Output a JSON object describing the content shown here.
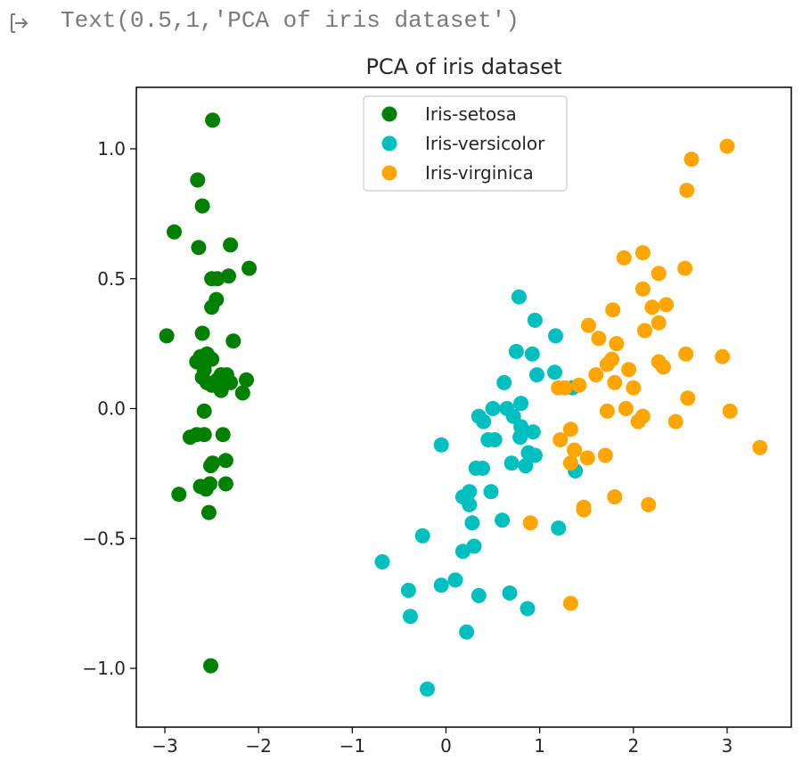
{
  "output": {
    "text": "Text(0.5,1,'PCA of iris dataset')",
    "icon": "output-arrow-icon"
  },
  "chart_data": {
    "type": "scatter",
    "title": "PCA of iris dataset",
    "xlabel": "",
    "ylabel": "",
    "xlim": [
      -3.3,
      3.7
    ],
    "ylim": [
      -1.22,
      1.23
    ],
    "xticks": [
      -3,
      -2,
      -1,
      0,
      1,
      2,
      3
    ],
    "yticks": [
      1.0,
      0.5,
      0.0,
      -0.5,
      -1.0
    ],
    "ytick_labels": [
      "1.0",
      "0.5",
      "0.0",
      "−0.5",
      "−1.0"
    ],
    "xtick_labels": [
      "−3",
      "−2",
      "−1",
      "0",
      "1",
      "2",
      "3"
    ],
    "grid": false,
    "legend": "top-center",
    "series": [
      {
        "name": "Iris-setosa",
        "color": "#008000",
        "points": [
          [
            -2.49,
            1.11
          ],
          [
            -2.65,
            0.88
          ],
          [
            -2.6,
            0.78
          ],
          [
            -2.9,
            0.68
          ],
          [
            -2.64,
            0.62
          ],
          [
            -2.3,
            0.63
          ],
          [
            -2.1,
            0.54
          ],
          [
            -2.5,
            0.5
          ],
          [
            -2.44,
            0.5
          ],
          [
            -2.32,
            0.51
          ],
          [
            -2.45,
            0.42
          ],
          [
            -2.5,
            0.39
          ],
          [
            -2.98,
            0.28
          ],
          [
            -2.6,
            0.29
          ],
          [
            -2.27,
            0.26
          ],
          [
            -2.62,
            0.2
          ],
          [
            -2.55,
            0.21
          ],
          [
            -2.5,
            0.19
          ],
          [
            -2.66,
            0.18
          ],
          [
            -2.58,
            0.15
          ],
          [
            -2.4,
            0.13
          ],
          [
            -2.34,
            0.13
          ],
          [
            -2.13,
            0.11
          ],
          [
            -2.44,
            0.11
          ],
          [
            -2.3,
            0.1
          ],
          [
            -2.55,
            0.1
          ],
          [
            -2.6,
            0.12
          ],
          [
            -2.4,
            0.07
          ],
          [
            -2.5,
            0.09
          ],
          [
            -2.17,
            0.06
          ],
          [
            -2.58,
            -0.01
          ],
          [
            -2.73,
            -0.11
          ],
          [
            -2.66,
            -0.1
          ],
          [
            -2.58,
            -0.1
          ],
          [
            -2.38,
            -0.1
          ],
          [
            -2.49,
            -0.21
          ],
          [
            -2.51,
            -0.22
          ],
          [
            -2.35,
            -0.2
          ],
          [
            -2.62,
            -0.3
          ],
          [
            -2.56,
            -0.31
          ],
          [
            -2.52,
            -0.29
          ],
          [
            -2.35,
            -0.29
          ],
          [
            -2.85,
            -0.33
          ],
          [
            -2.53,
            -0.4
          ],
          [
            -2.51,
            -0.99
          ]
        ]
      },
      {
        "name": "Iris-versicolor",
        "color": "#00bfbf",
        "points": [
          [
            0.78,
            0.43
          ],
          [
            0.95,
            0.34
          ],
          [
            1.17,
            0.28
          ],
          [
            0.75,
            0.22
          ],
          [
            0.92,
            0.21
          ],
          [
            0.62,
            0.1
          ],
          [
            1.16,
            0.14
          ],
          [
            0.97,
            0.13
          ],
          [
            1.35,
            0.08
          ],
          [
            0.5,
            0.0
          ],
          [
            0.65,
            0.0
          ],
          [
            0.72,
            -0.03
          ],
          [
            0.8,
            0.02
          ],
          [
            0.35,
            -0.03
          ],
          [
            0.4,
            -0.05
          ],
          [
            0.8,
            -0.07
          ],
          [
            0.79,
            -0.11
          ],
          [
            0.93,
            -0.09
          ],
          [
            0.45,
            -0.12
          ],
          [
            0.52,
            -0.12
          ],
          [
            -0.05,
            -0.14
          ],
          [
            0.88,
            -0.17
          ],
          [
            0.95,
            -0.18
          ],
          [
            0.7,
            -0.21
          ],
          [
            0.85,
            -0.22
          ],
          [
            1.38,
            -0.24
          ],
          [
            0.32,
            -0.23
          ],
          [
            0.39,
            -0.23
          ],
          [
            0.48,
            -0.32
          ],
          [
            0.25,
            -0.32
          ],
          [
            0.18,
            -0.34
          ],
          [
            0.25,
            -0.37
          ],
          [
            0.6,
            -0.43
          ],
          [
            0.28,
            -0.44
          ],
          [
            1.2,
            -0.46
          ],
          [
            -0.25,
            -0.49
          ],
          [
            0.3,
            -0.53
          ],
          [
            0.18,
            -0.55
          ],
          [
            -0.68,
            -0.59
          ],
          [
            0.1,
            -0.66
          ],
          [
            -0.05,
            -0.68
          ],
          [
            -0.4,
            -0.7
          ],
          [
            0.68,
            -0.71
          ],
          [
            0.35,
            -0.72
          ],
          [
            0.87,
            -0.77
          ],
          [
            -0.38,
            -0.8
          ],
          [
            0.22,
            -0.86
          ],
          [
            -0.2,
            -1.08
          ]
        ]
      },
      {
        "name": "Iris-virginica",
        "color": "#ffa500",
        "points": [
          [
            3.0,
            1.01
          ],
          [
            2.62,
            0.96
          ],
          [
            2.57,
            0.84
          ],
          [
            2.1,
            0.6
          ],
          [
            1.9,
            0.58
          ],
          [
            2.55,
            0.54
          ],
          [
            2.27,
            0.52
          ],
          [
            2.1,
            0.46
          ],
          [
            2.2,
            0.39
          ],
          [
            2.35,
            0.4
          ],
          [
            1.78,
            0.38
          ],
          [
            2.12,
            0.3
          ],
          [
            2.27,
            0.33
          ],
          [
            1.52,
            0.32
          ],
          [
            1.63,
            0.27
          ],
          [
            1.82,
            0.25
          ],
          [
            2.56,
            0.21
          ],
          [
            2.95,
            0.2
          ],
          [
            1.77,
            0.19
          ],
          [
            2.27,
            0.18
          ],
          [
            2.32,
            0.16
          ],
          [
            1.95,
            0.15
          ],
          [
            1.72,
            0.17
          ],
          [
            1.6,
            0.13
          ],
          [
            1.8,
            0.1
          ],
          [
            1.42,
            0.09
          ],
          [
            1.2,
            0.08
          ],
          [
            1.27,
            0.08
          ],
          [
            2.0,
            0.08
          ],
          [
            1.92,
            0.0
          ],
          [
            2.58,
            0.04
          ],
          [
            1.72,
            -0.01
          ],
          [
            2.1,
            -0.03
          ],
          [
            2.05,
            -0.05
          ],
          [
            2.45,
            -0.05
          ],
          [
            3.03,
            -0.01
          ],
          [
            1.33,
            -0.08
          ],
          [
            1.22,
            -0.12
          ],
          [
            1.37,
            -0.16
          ],
          [
            1.51,
            -0.19
          ],
          [
            1.7,
            -0.18
          ],
          [
            1.33,
            -0.21
          ],
          [
            3.35,
            -0.15
          ],
          [
            1.8,
            -0.34
          ],
          [
            2.16,
            -0.37
          ],
          [
            1.47,
            -0.38
          ],
          [
            1.47,
            -0.39
          ],
          [
            0.9,
            -0.44
          ],
          [
            1.33,
            -0.75
          ]
        ]
      }
    ]
  }
}
